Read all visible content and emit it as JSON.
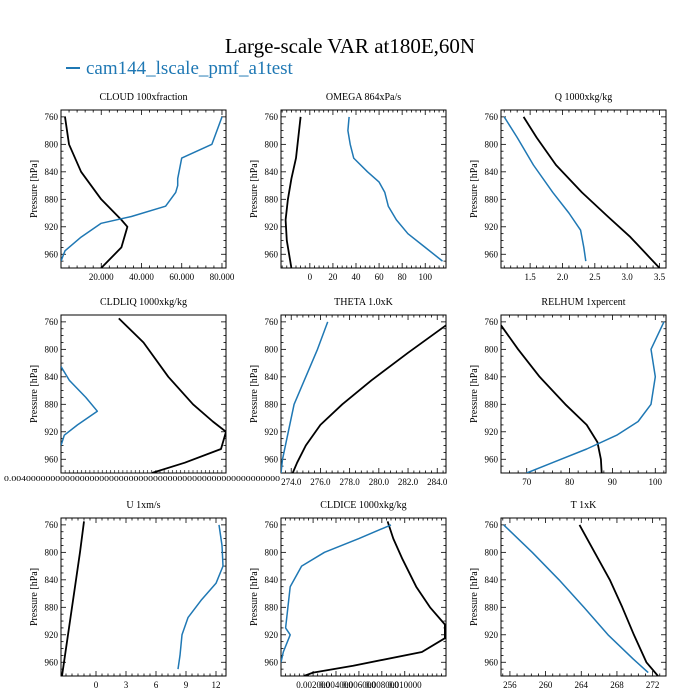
{
  "figure": {
    "title": "Large-scale VAR at180E,60N",
    "legend_label": "cam144_lscale_pmf_a1test",
    "series_colors": [
      "#000000",
      "#1f78b4"
    ]
  },
  "chart_data": [
    {
      "type": "line",
      "title": "CLOUD  100xfraction",
      "ylabel": "Pressure [hPa]",
      "ylim": [
        750,
        980
      ],
      "yticks": [
        760,
        800,
        840,
        880,
        920,
        960
      ],
      "ydir": "down",
      "xlim": [
        0,
        82
      ],
      "xticks": [
        20,
        40,
        60,
        80
      ],
      "xtick_labels": [
        "20.000",
        "40.000",
        "60.000",
        "80.000"
      ],
      "series": [
        {
          "color": "#000000",
          "points": [
            [
              2,
              760
            ],
            [
              4,
              800
            ],
            [
              10,
              840
            ],
            [
              20,
              880
            ],
            [
              30,
              910
            ],
            [
              33,
              920
            ],
            [
              30,
              950
            ],
            [
              20,
              980
            ]
          ]
        },
        {
          "color": "#1f78b4",
          "points": [
            [
              80,
              760
            ],
            [
              75,
              800
            ],
            [
              60,
              820
            ],
            [
              58,
              850
            ],
            [
              58,
              860
            ],
            [
              57,
              870
            ],
            [
              52,
              890
            ],
            [
              35,
              905
            ],
            [
              20,
              915
            ],
            [
              10,
              935
            ],
            [
              2,
              955
            ],
            [
              0,
              970
            ]
          ]
        }
      ]
    },
    {
      "type": "line",
      "title": "OMEGA  864xPa/s",
      "ylabel": "Pressure [hPa]",
      "ylim": [
        750,
        980
      ],
      "yticks": [
        760,
        800,
        840,
        880,
        920,
        960
      ],
      "ydir": "down",
      "xlim": [
        -25,
        118
      ],
      "xticks": [
        0,
        20,
        40,
        60,
        80,
        100
      ],
      "xtick_labels": [
        "0",
        "20",
        "40",
        "60",
        "80",
        "100"
      ],
      "series": [
        {
          "color": "#000000",
          "points": [
            [
              -8,
              760
            ],
            [
              -10,
              790
            ],
            [
              -12,
              820
            ],
            [
              -16,
              850
            ],
            [
              -19,
              880
            ],
            [
              -21,
              910
            ],
            [
              -20,
              940
            ],
            [
              -16,
              980
            ]
          ]
        },
        {
          "color": "#1f78b4",
          "points": [
            [
              34,
              760
            ],
            [
              33,
              780
            ],
            [
              35,
              800
            ],
            [
              38,
              820
            ],
            [
              50,
              840
            ],
            [
              60,
              855
            ],
            [
              65,
              870
            ],
            [
              68,
              890
            ],
            [
              75,
              910
            ],
            [
              85,
              930
            ],
            [
              100,
              950
            ],
            [
              115,
              970
            ]
          ]
        }
      ]
    },
    {
      "type": "line",
      "title": "Q  1000xkg/kg",
      "ylabel": "Pressure [hPa]",
      "ylim": [
        750,
        980
      ],
      "yticks": [
        760,
        800,
        840,
        880,
        920,
        960
      ],
      "ydir": "down",
      "xlim": [
        1.05,
        3.6
      ],
      "xticks": [
        1.5,
        2.0,
        2.5,
        3.0,
        3.5
      ],
      "xtick_labels": [
        "1.5",
        "2.0",
        "2.5",
        "3.0",
        "3.5"
      ],
      "series": [
        {
          "color": "#000000",
          "points": [
            [
              1.4,
              760
            ],
            [
              1.6,
              790
            ],
            [
              1.9,
              830
            ],
            [
              2.3,
              870
            ],
            [
              2.7,
              905
            ],
            [
              3.05,
              935
            ],
            [
              3.35,
              965
            ],
            [
              3.5,
              980
            ]
          ]
        },
        {
          "color": "#1f78b4",
          "points": [
            [
              1.1,
              760
            ],
            [
              1.3,
              790
            ],
            [
              1.55,
              830
            ],
            [
              1.85,
              870
            ],
            [
              2.1,
              900
            ],
            [
              2.28,
              925
            ],
            [
              2.33,
              950
            ],
            [
              2.36,
              970
            ]
          ]
        }
      ]
    },
    {
      "type": "line",
      "title": "CLDLIQ  1000xkg/kg",
      "ylabel": "Pressure [hPa]",
      "ylim": [
        750,
        980
      ],
      "yticks": [
        760,
        800,
        840,
        880,
        920,
        960
      ],
      "ydir": "down",
      "xlim": [
        0,
        1
      ],
      "xticks": [],
      "xtick_labels": [],
      "xtick_smear": "0.0040000000000000000000000000000000000000000000000000000",
      "series": [
        {
          "color": "#000000",
          "points": [
            [
              0.35,
              755
            ],
            [
              0.5,
              790
            ],
            [
              0.65,
              840
            ],
            [
              0.8,
              880
            ],
            [
              0.92,
              905
            ],
            [
              1.0,
              920
            ],
            [
              0.97,
              945
            ],
            [
              0.75,
              965
            ],
            [
              0.55,
              980
            ]
          ]
        },
        {
          "color": "#1f78b4",
          "points": [
            [
              0,
              825
            ],
            [
              0.05,
              845
            ],
            [
              0.15,
              870
            ],
            [
              0.22,
              890
            ],
            [
              0.1,
              910
            ],
            [
              0.02,
              925
            ],
            [
              0,
              940
            ]
          ]
        }
      ]
    },
    {
      "type": "line",
      "title": "THETA  1.0xK",
      "ylabel": "Pressure [hPa]",
      "ylim": [
        750,
        980
      ],
      "yticks": [
        760,
        800,
        840,
        880,
        920,
        960
      ],
      "ydir": "down",
      "xlim": [
        273.3,
        284.6
      ],
      "xticks": [
        274,
        276,
        278,
        280,
        282,
        284
      ],
      "xtick_labels": [
        "274.0",
        "276.0",
        "278.0",
        "280.0",
        "282.0",
        "284.0"
      ],
      "series": [
        {
          "color": "#000000",
          "points": [
            [
              284.6,
              765
            ],
            [
              282,
              805
            ],
            [
              279.5,
              845
            ],
            [
              277.5,
              880
            ],
            [
              276,
              910
            ],
            [
              275,
              940
            ],
            [
              274.4,
              965
            ],
            [
              274.1,
              980
            ]
          ]
        },
        {
          "color": "#1f78b4",
          "points": [
            [
              276.5,
              760
            ],
            [
              275.8,
              800
            ],
            [
              275,
              840
            ],
            [
              274.2,
              880
            ],
            [
              273.8,
              920
            ],
            [
              273.4,
              960
            ],
            [
              273.3,
              980
            ]
          ]
        }
      ]
    },
    {
      "type": "line",
      "title": "RELHUM  1xpercent",
      "ylabel": "Pressure [hPa]",
      "ylim": [
        750,
        980
      ],
      "yticks": [
        760,
        800,
        840,
        880,
        920,
        960
      ],
      "ydir": "down",
      "xlim": [
        64,
        102.5
      ],
      "xticks": [
        70,
        80,
        90,
        100
      ],
      "xtick_labels": [
        "70",
        "80",
        "90",
        "100"
      ],
      "series": [
        {
          "color": "#000000",
          "points": [
            [
              64,
              765
            ],
            [
              68,
              800
            ],
            [
              73,
              840
            ],
            [
              79,
              880
            ],
            [
              84,
              910
            ],
            [
              86.5,
              935
            ],
            [
              87.3,
              960
            ],
            [
              87.5,
              980
            ]
          ]
        },
        {
          "color": "#1f78b4",
          "points": [
            [
              102,
              760
            ],
            [
              99,
              800
            ],
            [
              100,
              840
            ],
            [
              99,
              880
            ],
            [
              96,
              905
            ],
            [
              91,
              925
            ],
            [
              84,
              945
            ],
            [
              76,
              965
            ],
            [
              70,
              980
            ]
          ]
        }
      ]
    },
    {
      "type": "line",
      "title": "U  1xm/s",
      "ylabel": "Pressure [hPa]",
      "ylim": [
        750,
        980
      ],
      "yticks": [
        760,
        800,
        840,
        880,
        920,
        960
      ],
      "ydir": "down",
      "xlim": [
        -3.5,
        13
      ],
      "xticks": [
        0,
        3,
        6,
        9,
        12
      ],
      "xtick_labels": [
        "0",
        "3",
        "6",
        "9",
        "12"
      ],
      "series": [
        {
          "color": "#000000",
          "points": [
            [
              -1.2,
              755
            ],
            [
              -1.6,
              800
            ],
            [
              -2.1,
              850
            ],
            [
              -2.6,
              900
            ],
            [
              -3.1,
              950
            ],
            [
              -3.4,
              980
            ]
          ]
        },
        {
          "color": "#1f78b4",
          "points": [
            [
              12.3,
              760
            ],
            [
              12.6,
              790
            ],
            [
              12.7,
              820
            ],
            [
              12,
              845
            ],
            [
              10.5,
              870
            ],
            [
              9.2,
              895
            ],
            [
              8.6,
              920
            ],
            [
              8.4,
              950
            ],
            [
              8.2,
              970
            ]
          ]
        }
      ]
    },
    {
      "type": "line",
      "title": "CLDICE  1000xkg/kg",
      "ylabel": "Pressure [hPa]",
      "ylim": [
        750,
        980
      ],
      "yticks": [
        760,
        800,
        840,
        880,
        920,
        960
      ],
      "ydir": "down",
      "xlim": [
        -0.0008,
        0.0136
      ],
      "xticks": [
        0.002,
        0.004,
        0.006,
        0.008,
        0.01
      ],
      "xtick_labels": [
        "0.002000",
        "0.004000",
        "0.006000",
        "0.008000",
        "0.010000"
      ],
      "series": [
        {
          "color": "#000000",
          "points": [
            [
              0.0085,
              755
            ],
            [
              0.009,
              780
            ],
            [
              0.0098,
              810
            ],
            [
              0.011,
              850
            ],
            [
              0.0122,
              880
            ],
            [
              0.0135,
              905
            ],
            [
              0.0135,
              925
            ],
            [
              0.0115,
              945
            ],
            [
              0.0055,
              965
            ],
            [
              0.002,
              975
            ],
            [
              0.0012,
              980
            ]
          ]
        },
        {
          "color": "#1f78b4",
          "points": [
            [
              0.0088,
              760
            ],
            [
              0.006,
              780
            ],
            [
              0.003,
              800
            ],
            [
              0.001,
              820
            ],
            [
              0.0,
              850
            ],
            [
              -0.0002,
              880
            ],
            [
              -0.0004,
              910
            ],
            [
              0.0,
              920
            ],
            [
              -0.0006,
              945
            ],
            [
              -0.0008,
              960
            ]
          ]
        }
      ]
    },
    {
      "type": "line",
      "title": "T  1xK",
      "ylabel": "Pressure [hPa]",
      "ylim": [
        750,
        980
      ],
      "yticks": [
        760,
        800,
        840,
        880,
        920,
        960
      ],
      "ydir": "down",
      "xlim": [
        255,
        273.5
      ],
      "xticks": [
        256,
        260,
        264,
        268,
        272
      ],
      "xtick_labels": [
        "256",
        "260",
        "264",
        "268",
        "272"
      ],
      "series": [
        {
          "color": "#000000",
          "points": [
            [
              263.8,
              760
            ],
            [
              265.5,
              800
            ],
            [
              267.2,
              840
            ],
            [
              268.6,
              880
            ],
            [
              269.9,
              920
            ],
            [
              271.3,
              960
            ],
            [
              272.6,
              980
            ]
          ]
        },
        {
          "color": "#1f78b4",
          "points": [
            [
              255.3,
              760
            ],
            [
              258.5,
              800
            ],
            [
              261.5,
              840
            ],
            [
              264.3,
              880
            ],
            [
              267,
              920
            ],
            [
              269.8,
              955
            ],
            [
              271.5,
              975
            ]
          ]
        }
      ]
    }
  ]
}
